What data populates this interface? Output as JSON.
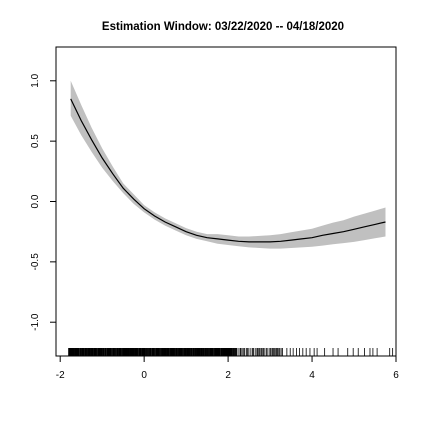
{
  "chart_data": {
    "type": "line",
    "title": "Estimation Window: 03/22/2020 -- 04/18/2020",
    "xlabel": "",
    "ylabel": "",
    "xlim": [
      -2.1,
      6.0
    ],
    "ylim": [
      -1.28,
      1.28
    ],
    "x_ticks": [
      -2,
      0,
      2,
      4,
      6
    ],
    "y_ticks": [
      -1.0,
      -0.5,
      0.0,
      0.5,
      1.0
    ],
    "x_tick_labels": [
      "-2",
      "0",
      "2",
      "4",
      "6"
    ],
    "y_tick_labels": [
      "-1.0",
      "-0.5",
      "0.0",
      "0.5",
      "1.0"
    ],
    "grid": false,
    "series": [
      {
        "x": [
          -1.75,
          -1.5,
          -1.25,
          -1.0,
          -0.75,
          -0.5,
          -0.25,
          0.0,
          0.25,
          0.5,
          0.75,
          1.0,
          1.25,
          1.5,
          1.75,
          2.0,
          2.25,
          2.5,
          2.75,
          3.0,
          3.25,
          3.5,
          3.75,
          4.0,
          4.25,
          4.5,
          4.75,
          5.0,
          5.25,
          5.5,
          5.75
        ],
        "values": [
          0.85,
          0.67,
          0.51,
          0.36,
          0.23,
          0.11,
          0.02,
          -0.06,
          -0.12,
          -0.17,
          -0.21,
          -0.25,
          -0.28,
          -0.3,
          -0.31,
          -0.32,
          -0.33,
          -0.335,
          -0.335,
          -0.335,
          -0.33,
          -0.32,
          -0.31,
          -0.3,
          -0.28,
          -0.265,
          -0.25,
          -0.23,
          -0.21,
          -0.19,
          -0.17
        ],
        "lower": [
          0.71,
          0.55,
          0.41,
          0.28,
          0.17,
          0.07,
          -0.02,
          -0.09,
          -0.15,
          -0.2,
          -0.24,
          -0.28,
          -0.31,
          -0.33,
          -0.35,
          -0.36,
          -0.37,
          -0.38,
          -0.385,
          -0.39,
          -0.39,
          -0.385,
          -0.38,
          -0.375,
          -0.365,
          -0.355,
          -0.345,
          -0.335,
          -0.32,
          -0.305,
          -0.29
        ],
        "upper": [
          1.0,
          0.8,
          0.61,
          0.44,
          0.29,
          0.15,
          0.06,
          -0.03,
          -0.09,
          -0.14,
          -0.18,
          -0.22,
          -0.25,
          -0.27,
          -0.27,
          -0.28,
          -0.29,
          -0.29,
          -0.285,
          -0.28,
          -0.27,
          -0.255,
          -0.24,
          -0.225,
          -0.2,
          -0.175,
          -0.155,
          -0.125,
          -0.1,
          -0.075,
          -0.05
        ]
      }
    ],
    "rug": {
      "dense_ranges": [
        [
          -1.8,
          0.9
        ],
        [
          0.9,
          2.2
        ],
        [
          2.2,
          3.3
        ]
      ],
      "sparse_x": [
        3.4,
        3.48,
        3.55,
        3.63,
        3.7,
        3.78,
        3.86,
        3.95,
        4.05,
        4.12,
        4.3,
        4.5,
        4.62,
        4.85,
        4.98,
        5.1,
        5.25,
        5.38,
        5.45,
        5.55,
        5.85,
        5.92
      ]
    },
    "colors": {
      "band": "#c0c0c0",
      "line": "#000000",
      "axis": "#000000"
    }
  }
}
